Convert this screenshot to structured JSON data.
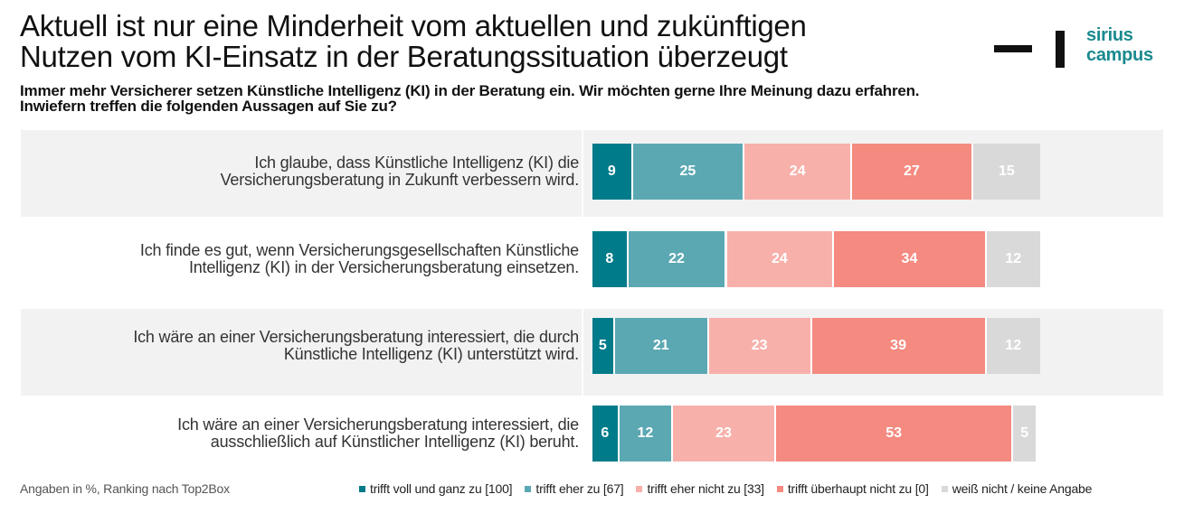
{
  "header": {
    "title_lines": [
      "Aktuell ist nur eine Minderheit vom aktuellen und zukünftigen",
      "Nutzen vom KI-Einsatz in der Beratungssituation überzeugt"
    ],
    "subtitle_lines": [
      "Immer mehr Versicherer setzen Künstliche Intelligenz (KI) in der Beratung ein. Wir möchten gerne Ihre Meinung dazu erfahren.",
      "Inwiefern treffen die folgenden Aussagen auf Sie zu?"
    ],
    "logo": {
      "line1": "sirius",
      "line2": "campus",
      "color": "#1a8a8f"
    }
  },
  "footnote": "Angaben in %, Ranking nach Top2Box",
  "chart_data": {
    "type": "bar",
    "orientation": "horizontal",
    "stacked": true,
    "title": "Aktuell ist nur eine Minderheit vom aktuellen und zukünftigen Nutzen vom KI-Einsatz in der Beratungssituation überzeugt",
    "xlabel": "",
    "ylabel": "",
    "xlim": [
      0,
      100
    ],
    "grid": false,
    "legend_position": "bottom-right",
    "unit": "%",
    "categories": [
      [
        "Ich glaube, dass Künstliche Intelligenz (KI) die",
        "Versicherungsberatung in Zukunft verbessern wird."
      ],
      [
        "Ich finde es gut, wenn Versicherungsgesellschaften Künstliche",
        "Intelligenz (KI) in der Versicherungsberatung einsetzen."
      ],
      [
        "Ich wäre an einer Versicherungsberatung interessiert, die durch",
        "Künstliche Intelligenz (KI) unterstützt wird."
      ],
      [
        "Ich wäre an einer Versicherungsberatung interessiert, die",
        "ausschließlich auf Künstlicher Intelligenz (KI) beruht."
      ]
    ],
    "series": [
      {
        "name": "trifft voll und ganz zu [100]",
        "color": "#007b8a",
        "values": [
          9,
          8,
          5,
          6
        ]
      },
      {
        "name": "trifft eher zu [67]",
        "color": "#5ba8b3",
        "values": [
          25,
          22,
          21,
          12
        ]
      },
      {
        "name": "trifft eher nicht zu [33]",
        "color": "#f8b0aa",
        "values": [
          24,
          24,
          23,
          23
        ]
      },
      {
        "name": "trifft überhaupt nicht zu [0]",
        "color": "#f48a80",
        "values": [
          27,
          34,
          39,
          53
        ]
      },
      {
        "name": "weiß nicht / keine Angabe",
        "color": "#d9d9d9",
        "values": [
          15,
          12,
          12,
          5
        ]
      }
    ]
  }
}
